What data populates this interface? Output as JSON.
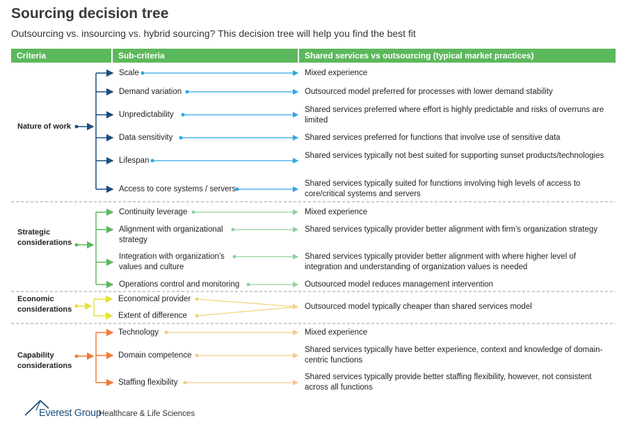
{
  "title": "Sourcing decision tree",
  "subtitle": "Outsourcing vs. insourcing vs. hybrid sourcing? This decision tree will help you find the best fit",
  "headers": {
    "criteria": "Criteria",
    "sub_criteria": "Sub-criteria",
    "result": "Shared services vs outsourcing (typical market practices)"
  },
  "colors": {
    "header": "#5cb85c",
    "nature": "#1c4e80",
    "nature_arrow": "#2aa6e8",
    "strategic": "#5cb85c",
    "strategic_arrow": "#8fd19e",
    "economic": "#e8e035",
    "economic_arrow": "#f2d27a",
    "capability": "#ef7a35",
    "capability_arrow": "#f5c98a"
  },
  "groups": [
    {
      "criteria": "Nature of work",
      "items": [
        {
          "sub": "Scale",
          "result": "Mixed experience"
        },
        {
          "sub": "Demand variation",
          "result": "Outsourced model preferred for processes with lower demand stability"
        },
        {
          "sub": "Unpredictability",
          "result": "Shared services preferred where effort is highly predictable and risks of overruns are limited"
        },
        {
          "sub": "Data sensitivity",
          "result": "Shared services preferred for functions that involve use of sensitive data"
        },
        {
          "sub": "Lifespan",
          "result": "Shared services typically not best suited for supporting sunset products/technologies"
        },
        {
          "sub": "Access to core systems / servers",
          "result": "Shared services typically suited for functions involving high levels of access to core/critical systems and servers"
        }
      ]
    },
    {
      "criteria": "Strategic considerations",
      "items": [
        {
          "sub": "Continuity leverage",
          "result": "Mixed experience"
        },
        {
          "sub": "Alignment with organizational strategy",
          "result": "Shared services typically provider better alignment with firm’s organization strategy"
        },
        {
          "sub": "Integration with organization’s values and culture",
          "result": "Shared services typically provider better alignment with where higher level of integration and understanding of organization values is needed"
        },
        {
          "sub": "Operations control and monitoring",
          "result": "Outsourced model reduces management intervention"
        }
      ]
    },
    {
      "criteria": "Economic considerations",
      "items": [
        {
          "sub": "Economical provider"
        },
        {
          "sub": "Extent of difference"
        }
      ],
      "shared_result": "Outsourced model typically cheaper than shared services model"
    },
    {
      "criteria": "Capability considerations",
      "items": [
        {
          "sub": "Technology",
          "result": "Mixed experience"
        },
        {
          "sub": "Domain competence",
          "result": "Shared services typically have better experience, context and knowledge of domain-centric functions"
        },
        {
          "sub": "Staffing flexibility",
          "result": "Shared services typically provide better staffing flexibility, however, not consistent across all functions"
        }
      ]
    }
  ],
  "footer": {
    "logo_text": "Everest Group",
    "logo_subtext": "Healthcare & Life Sciences"
  }
}
